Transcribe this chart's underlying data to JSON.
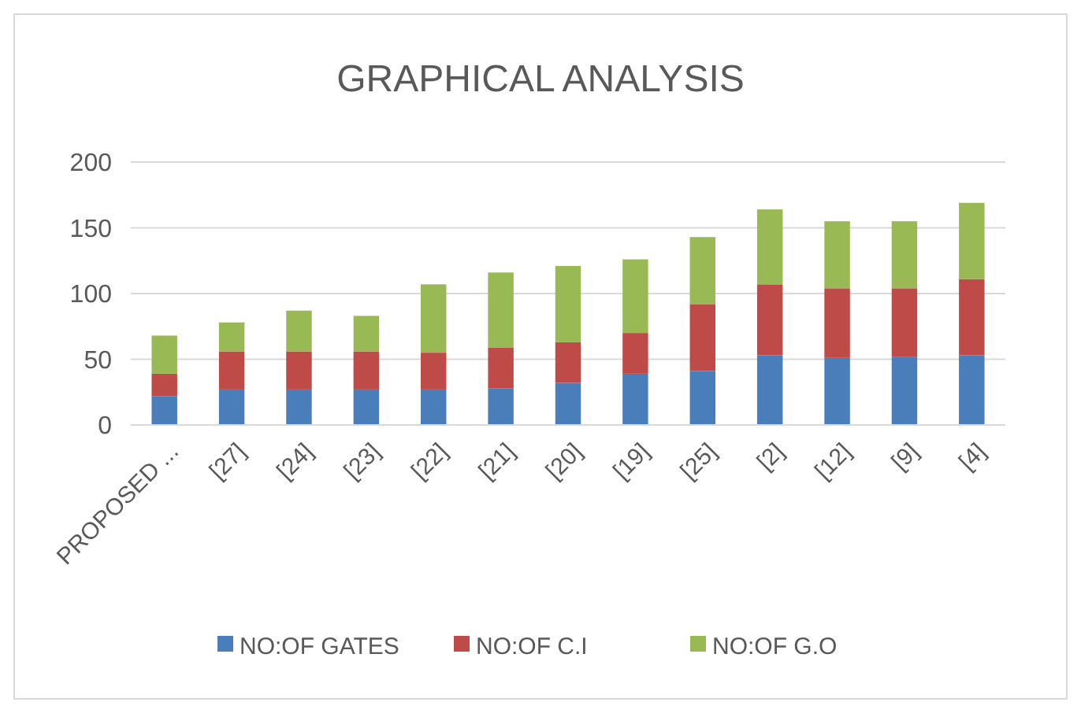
{
  "chart_data": {
    "type": "bar",
    "title": "GRAPHICAL ANALYSIS",
    "stacked": true,
    "categories": [
      "PROPOSED ...",
      "[27]",
      "[24]",
      "[23]",
      "[22]",
      "[21]",
      "[20]",
      "[19]",
      "[25]",
      "[2]",
      "[12]",
      "[9]",
      "[4]"
    ],
    "series": [
      {
        "name": "NO:OF GATES",
        "color": "#4a7ebb",
        "values": [
          22,
          27,
          27,
          27,
          27,
          28,
          32,
          39,
          41,
          53,
          51,
          52,
          53
        ]
      },
      {
        "name": "NO:OF C.I",
        "color": "#be4b48",
        "values": [
          17,
          29,
          29,
          29,
          28,
          31,
          31,
          31,
          51,
          54,
          53,
          52,
          58
        ]
      },
      {
        "name": "NO:OF G.O",
        "color": "#98b954",
        "values": [
          29,
          22,
          31,
          27,
          52,
          57,
          58,
          56,
          51,
          57,
          51,
          51,
          58
        ]
      }
    ],
    "ylim": [
      0,
      200
    ],
    "yticks": [
      0,
      50,
      100,
      150,
      200
    ],
    "grid": "y",
    "legend": "bottom"
  }
}
